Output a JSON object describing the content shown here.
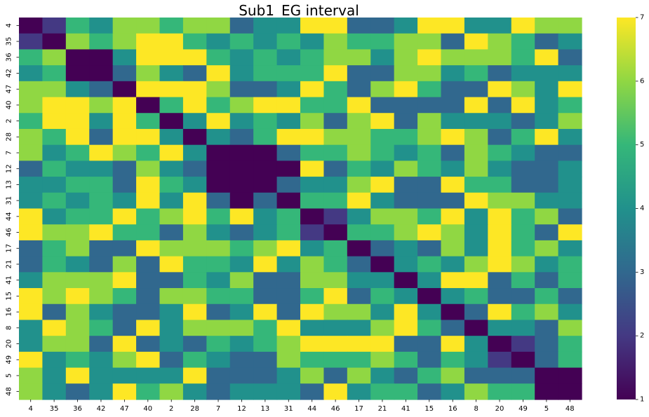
{
  "chart_data": {
    "type": "heatmap",
    "title": "Sub1_EG interval",
    "xlabel": "",
    "ylabel": "",
    "x_labels": [
      "4",
      "35",
      "36",
      "42",
      "47",
      "40",
      "2",
      "28",
      "7",
      "12",
      "13",
      "31",
      "44",
      "46",
      "17",
      "21",
      "41",
      "15",
      "16",
      "8",
      "20",
      "49",
      "5",
      "48"
    ],
    "y_labels": [
      "4",
      "35",
      "36",
      "42",
      "47",
      "40",
      "2",
      "28",
      "7",
      "12",
      "13",
      "31",
      "44",
      "46",
      "17",
      "21",
      "41",
      "15",
      "16",
      "8",
      "20",
      "49",
      "5",
      "48"
    ],
    "values": [
      [
        1,
        2,
        5,
        4,
        6,
        6,
        5,
        6,
        6,
        3,
        4,
        4,
        7,
        7,
        3,
        3,
        4,
        7,
        7,
        4,
        4,
        7,
        6,
        6
      ],
      [
        2,
        1,
        6,
        5,
        6,
        7,
        7,
        5,
        4,
        5,
        4,
        5,
        4,
        6,
        5,
        5,
        6,
        6,
        3,
        7,
        6,
        5,
        3,
        4
      ],
      [
        5,
        6,
        1,
        1,
        4,
        7,
        7,
        7,
        5,
        4,
        5,
        4,
        5,
        6,
        6,
        4,
        6,
        7,
        6,
        6,
        6,
        5,
        7,
        3
      ],
      [
        4,
        5,
        1,
        1,
        3,
        6,
        4,
        3,
        7,
        4,
        5,
        5,
        5,
        7,
        3,
        3,
        6,
        6,
        4,
        5,
        3,
        4,
        4,
        4
      ],
      [
        6,
        6,
        4,
        3,
        1,
        7,
        7,
        7,
        6,
        3,
        3,
        4,
        7,
        5,
        3,
        6,
        7,
        5,
        3,
        3,
        7,
        6,
        4,
        7
      ],
      [
        6,
        7,
        7,
        6,
        7,
        1,
        5,
        7,
        5,
        6,
        7,
        7,
        5,
        5,
        7,
        3,
        3,
        3,
        3,
        7,
        3,
        7,
        4,
        5
      ],
      [
        5,
        7,
        7,
        4,
        7,
        5,
        1,
        4,
        7,
        4,
        5,
        4,
        6,
        3,
        6,
        7,
        3,
        6,
        4,
        4,
        4,
        3,
        4,
        6
      ],
      [
        6,
        5,
        7,
        3,
        7,
        7,
        4,
        1,
        4,
        3,
        5,
        7,
        7,
        6,
        6,
        5,
        5,
        6,
        7,
        6,
        3,
        5,
        7,
        4
      ],
      [
        6,
        4,
        5,
        7,
        6,
        5,
        7,
        4,
        1,
        1,
        1,
        3,
        5,
        5,
        6,
        5,
        4,
        5,
        3,
        6,
        5,
        4,
        3,
        3
      ],
      [
        3,
        5,
        4,
        4,
        3,
        6,
        4,
        3,
        1,
        1,
        1,
        1,
        7,
        3,
        5,
        4,
        6,
        5,
        4,
        6,
        4,
        3,
        3,
        4
      ],
      [
        4,
        4,
        5,
        5,
        3,
        7,
        5,
        4,
        1,
        1,
        1,
        3,
        4,
        4,
        6,
        7,
        3,
        3,
        7,
        5,
        5,
        3,
        3,
        4
      ],
      [
        4,
        5,
        4,
        5,
        4,
        7,
        4,
        7,
        3,
        1,
        3,
        1,
        5,
        5,
        7,
        4,
        3,
        3,
        3,
        7,
        6,
        6,
        4,
        4
      ],
      [
        7,
        4,
        5,
        5,
        7,
        5,
        6,
        7,
        5,
        7,
        4,
        5,
        1,
        2,
        4,
        6,
        6,
        5,
        7,
        4,
        7,
        5,
        6,
        3
      ],
      [
        7,
        6,
        6,
        7,
        5,
        5,
        3,
        6,
        4,
        3,
        4,
        5,
        2,
        1,
        5,
        5,
        6,
        7,
        6,
        4,
        7,
        5,
        3,
        7
      ],
      [
        3,
        5,
        6,
        3,
        3,
        7,
        6,
        6,
        6,
        5,
        6,
        7,
        4,
        5,
        1,
        3,
        4,
        3,
        6,
        4,
        7,
        5,
        6,
        4
      ],
      [
        3,
        5,
        4,
        3,
        6,
        3,
        7,
        5,
        5,
        4,
        7,
        4,
        6,
        5,
        3,
        1,
        4,
        5,
        4,
        6,
        7,
        6,
        4,
        5
      ],
      [
        4,
        6,
        6,
        6,
        7,
        3,
        3,
        5,
        4,
        6,
        3,
        3,
        6,
        6,
        4,
        4,
        1,
        4,
        7,
        7,
        3,
        5,
        3,
        5
      ],
      [
        7,
        6,
        7,
        6,
        5,
        3,
        6,
        6,
        5,
        5,
        3,
        3,
        5,
        7,
        3,
        5,
        4,
        1,
        4,
        5,
        3,
        3,
        5,
        3
      ],
      [
        7,
        3,
        6,
        4,
        3,
        3,
        4,
        7,
        3,
        4,
        7,
        3,
        7,
        6,
        6,
        4,
        7,
        4,
        1,
        3,
        7,
        5,
        6,
        4
      ],
      [
        4,
        7,
        6,
        5,
        3,
        7,
        4,
        6,
        6,
        6,
        5,
        7,
        4,
        4,
        4,
        6,
        7,
        5,
        3,
        1,
        4,
        4,
        3,
        6
      ],
      [
        4,
        6,
        6,
        3,
        7,
        3,
        4,
        3,
        5,
        4,
        5,
        6,
        7,
        7,
        7,
        7,
        3,
        3,
        7,
        4,
        1,
        2,
        3,
        5
      ],
      [
        7,
        4,
        5,
        4,
        6,
        7,
        3,
        5,
        4,
        3,
        3,
        6,
        5,
        5,
        5,
        6,
        5,
        3,
        5,
        4,
        2,
        1,
        3,
        5
      ],
      [
        6,
        4,
        7,
        4,
        4,
        4,
        4,
        7,
        3,
        3,
        3,
        4,
        6,
        3,
        6,
        4,
        3,
        5,
        6,
        3,
        3,
        3,
        1,
        1
      ],
      [
        6,
        4,
        3,
        4,
        7,
        5,
        6,
        4,
        3,
        4,
        4,
        4,
        3,
        7,
        4,
        5,
        5,
        3,
        4,
        6,
        5,
        5,
        1,
        1
      ]
    ],
    "zlim": [
      1,
      7
    ],
    "colorbar_ticks": [
      "1",
      "2",
      "3",
      "4",
      "5",
      "6",
      "7"
    ],
    "colormap": [
      "#440154",
      "#443983",
      "#31688e",
      "#21918c",
      "#35b779",
      "#90d743",
      "#fde725"
    ],
    "grid": false,
    "legend": "colorbar-right"
  }
}
